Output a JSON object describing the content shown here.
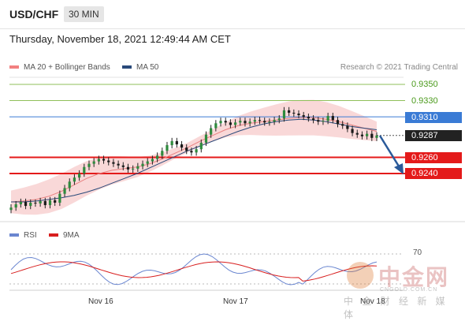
{
  "header": {
    "pair": "USD/CHF",
    "timeframe": "30 MIN"
  },
  "datetime": "Thursday, November 18, 2021 12:49:44 AM CET",
  "legend": {
    "ma20_label": "MA 20 + Bollinger Bands",
    "ma50_label": "MA 50",
    "credit": "Research © 2021 Trading Central",
    "rsi_label": "RSI",
    "ma9_label": "9MA"
  },
  "colors": {
    "ma20": "#f28080",
    "ma50": "#2a4a7a",
    "rsi": "#6a86d0",
    "ma9": "#d81e1e",
    "resistance": "#8fbf5a",
    "pivot": "#3a7bd5",
    "support": "#e41a1a",
    "band": "#f6c8c8"
  },
  "watermark": {
    "cn": "中金网",
    "en": "CNGOLD.COM.CN",
    "sub": "中 金 财 经 新 媒 体"
  },
  "chart_data": {
    "type": "line",
    "title": "USD/CHF",
    "x_labels": [
      "Nov 16",
      "Nov 17",
      "Nov 18"
    ],
    "levels": [
      {
        "label": "0.9350",
        "value": 0.935,
        "kind": "resistance"
      },
      {
        "label": "0.9330",
        "value": 0.933,
        "kind": "resistance"
      },
      {
        "label": "0.9310",
        "value": 0.931,
        "kind": "pivot"
      },
      {
        "label": "0.9287",
        "value": 0.9287,
        "kind": "last"
      },
      {
        "label": "0.9260",
        "value": 0.926,
        "kind": "support"
      },
      {
        "label": "0.9240",
        "value": 0.924,
        "kind": "support"
      }
    ],
    "price_close": [
      0.9198,
      0.9202,
      0.9205,
      0.92,
      0.9204,
      0.9203,
      0.9206,
      0.9201,
      0.9207,
      0.9204,
      0.9215,
      0.9222,
      0.923,
      0.9235,
      0.924,
      0.9248,
      0.9252,
      0.9255,
      0.9258,
      0.9256,
      0.9254,
      0.9252,
      0.925,
      0.9248,
      0.9245,
      0.9246,
      0.9249,
      0.9252,
      0.9255,
      0.9258,
      0.9262,
      0.9268,
      0.9275,
      0.928,
      0.9276,
      0.9272,
      0.9268,
      0.9266,
      0.927,
      0.9278,
      0.9288,
      0.9296,
      0.9302,
      0.9305,
      0.9303,
      0.93,
      0.9303,
      0.9305,
      0.9302,
      0.9304,
      0.9306,
      0.9305,
      0.9303,
      0.9304,
      0.9306,
      0.9308,
      0.9318,
      0.9315,
      0.9314,
      0.9312,
      0.931,
      0.9308,
      0.9306,
      0.9304,
      0.9305,
      0.9311,
      0.9306,
      0.9301,
      0.9299,
      0.9295,
      0.929,
      0.9288,
      0.9286,
      0.9289,
      0.9284,
      0.9287
    ],
    "ma20": [
      0.9205,
      0.9206,
      0.9208,
      0.9212,
      0.9218,
      0.9226,
      0.9234,
      0.924,
      0.9244,
      0.9246,
      0.9248,
      0.9252,
      0.9258,
      0.9265,
      0.9272,
      0.928,
      0.9287,
      0.9294,
      0.9299,
      0.9302,
      0.9304,
      0.9306,
      0.9308,
      0.9309,
      0.9309,
      0.9307,
      0.9304,
      0.93,
      0.9296,
      0.9292
    ],
    "ma50": [
      0.9205,
      0.9205,
      0.9206,
      0.9208,
      0.921,
      0.9213,
      0.9217,
      0.9222,
      0.9228,
      0.9234,
      0.924,
      0.9247,
      0.9254,
      0.9261,
      0.9268,
      0.9274,
      0.928,
      0.9286,
      0.9292,
      0.9297,
      0.9301,
      0.9304,
      0.9306,
      0.9307,
      0.9306,
      0.9304,
      0.9301,
      0.9298,
      0.9296,
      0.9294
    ],
    "rsi_ticks": [
      "70"
    ],
    "forecast": "down toward 0.9240"
  }
}
